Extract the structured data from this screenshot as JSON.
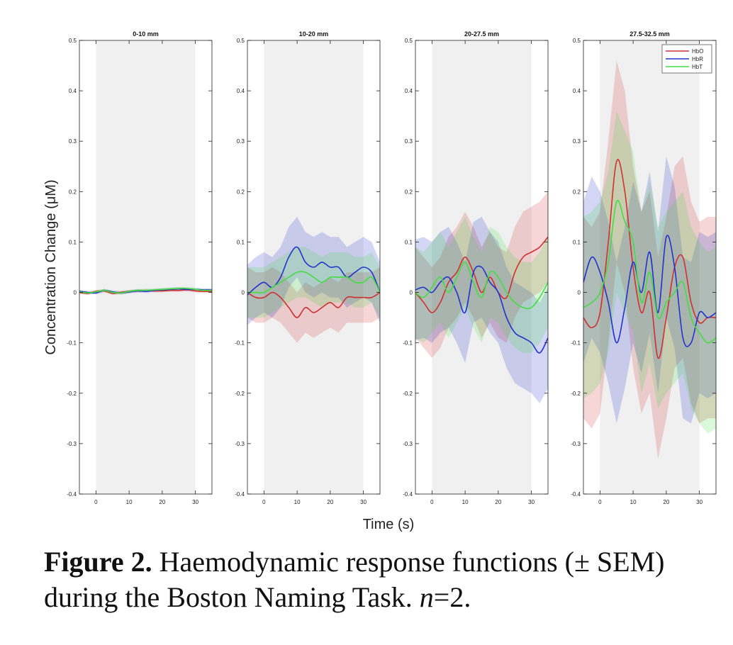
{
  "caption": {
    "label": "Figure 2.",
    "text_before_n": " Haemodynamic response functions (± SEM) during the Boston Naming Task. ",
    "n_symbol": "n",
    "text_after_n": "=2."
  },
  "colors": {
    "HbO": "#d03030",
    "HbR": "#2233cc",
    "HbT": "#44dd44",
    "task_block": "#f0f0f0"
  },
  "chart_data": {
    "type": "line",
    "ylabel": "Concentration Change (μM)",
    "xlabel": "Time (s)",
    "xlim": [
      -5,
      35
    ],
    "ylim": [
      -0.4,
      0.5
    ],
    "x_ticks": [
      0,
      10,
      20,
      30
    ],
    "y_ticks": [
      -0.4,
      -0.3,
      -0.2,
      -0.1,
      0,
      0.1,
      0.2,
      0.3,
      0.4,
      0.5
    ],
    "y_tick_labels": [
      "-0.4",
      "-0.3",
      "-0.2",
      "-0.1",
      "0",
      "0.1",
      "0.2",
      "0.3",
      "0.4",
      "0.5"
    ],
    "task_block": [
      0,
      30
    ],
    "legend": {
      "position": "top-right",
      "entries": [
        "HbO",
        "HbR",
        "HbT"
      ]
    },
    "x": [
      -5,
      -2.5,
      0,
      2.5,
      5,
      7.5,
      10,
      12.5,
      15,
      17.5,
      20,
      22.5,
      25,
      27.5,
      30,
      32.5,
      35
    ],
    "panels": [
      {
        "title": "0-10 mm",
        "series": [
          {
            "name": "HbO",
            "values": [
              0.0,
              -0.002,
              0.002,
              0.003,
              -0.002,
              0.0,
              0.002,
              0.003,
              0.004,
              0.003,
              0.003,
              0.004,
              0.004,
              0.005,
              0.003,
              0.002,
              0.002
            ],
            "sem": [
              0.003,
              0.003,
              0.003,
              0.003,
              0.003,
              0.003,
              0.003,
              0.003,
              0.003,
              0.003,
              0.003,
              0.003,
              0.003,
              0.003,
              0.003,
              0.003,
              0.003
            ]
          },
          {
            "name": "HbR",
            "values": [
              0.002,
              0.0,
              -0.001,
              0.004,
              0.001,
              -0.001,
              0.001,
              0.003,
              0.002,
              0.004,
              0.005,
              0.006,
              0.007,
              0.006,
              0.006,
              0.005,
              0.005
            ],
            "sem": [
              0.003,
              0.003,
              0.003,
              0.003,
              0.003,
              0.003,
              0.003,
              0.003,
              0.003,
              0.003,
              0.003,
              0.003,
              0.003,
              0.003,
              0.003,
              0.003,
              0.003
            ]
          },
          {
            "name": "HbT",
            "values": [
              0.001,
              -0.001,
              0.001,
              0.004,
              0.0,
              -0.001,
              0.002,
              0.004,
              0.004,
              0.005,
              0.006,
              0.007,
              0.008,
              0.008,
              0.006,
              0.004,
              0.004
            ],
            "sem": [
              0.003,
              0.003,
              0.003,
              0.003,
              0.003,
              0.003,
              0.003,
              0.003,
              0.003,
              0.003,
              0.003,
              0.003,
              0.003,
              0.003,
              0.003,
              0.003,
              0.003
            ]
          }
        ]
      },
      {
        "title": "10-20 mm",
        "series": [
          {
            "name": "HbO",
            "values": [
              0.0,
              -0.01,
              -0.01,
              0.0,
              -0.01,
              -0.03,
              -0.05,
              -0.03,
              -0.04,
              -0.03,
              -0.02,
              -0.03,
              -0.01,
              -0.01,
              -0.01,
              -0.01,
              0.0
            ],
            "sem": [
              0.05,
              0.05,
              0.05,
              0.05,
              0.05,
              0.05,
              0.05,
              0.05,
              0.05,
              0.05,
              0.05,
              0.05,
              0.05,
              0.05,
              0.05,
              0.05,
              0.05
            ]
          },
          {
            "name": "HbR",
            "values": [
              -0.005,
              0.01,
              0.02,
              0.01,
              0.03,
              0.07,
              0.09,
              0.06,
              0.05,
              0.06,
              0.05,
              0.05,
              0.03,
              0.04,
              0.05,
              0.04,
              0.0
            ],
            "sem": [
              0.06,
              0.06,
              0.06,
              0.06,
              0.06,
              0.06,
              0.06,
              0.06,
              0.06,
              0.06,
              0.06,
              0.06,
              0.06,
              0.06,
              0.06,
              0.06,
              0.06
            ]
          },
          {
            "name": "HbT",
            "values": [
              0.0,
              0.0,
              0.0,
              0.01,
              0.02,
              0.03,
              0.04,
              0.04,
              0.03,
              0.02,
              0.03,
              0.03,
              0.03,
              0.02,
              0.02,
              0.03,
              0.0
            ],
            "sem": [
              0.05,
              0.05,
              0.05,
              0.05,
              0.05,
              0.05,
              0.05,
              0.05,
              0.05,
              0.05,
              0.05,
              0.05,
              0.05,
              0.05,
              0.05,
              0.05,
              0.05
            ]
          }
        ]
      },
      {
        "title": "20-27.5 mm",
        "series": [
          {
            "name": "HbO",
            "values": [
              0.0,
              -0.02,
              -0.04,
              -0.02,
              0.02,
              0.04,
              0.07,
              0.04,
              0.0,
              0.03,
              0.0,
              -0.01,
              0.04,
              0.07,
              0.08,
              0.09,
              0.11
            ],
            "sem": [
              0.09,
              0.09,
              0.09,
              0.09,
              0.09,
              0.09,
              0.09,
              0.09,
              0.09,
              0.09,
              0.09,
              0.09,
              0.09,
              0.09,
              0.09,
              0.09,
              0.09
            ]
          },
          {
            "name": "HbR",
            "values": [
              0.005,
              0.01,
              0.0,
              0.02,
              0.03,
              0.0,
              -0.04,
              0.04,
              0.05,
              0.02,
              0.0,
              -0.05,
              -0.08,
              -0.09,
              -0.1,
              -0.12,
              -0.09
            ],
            "sem": [
              0.1,
              0.1,
              0.1,
              0.1,
              0.1,
              0.1,
              0.1,
              0.1,
              0.1,
              0.1,
              0.1,
              0.1,
              0.1,
              0.1,
              0.1,
              0.1,
              0.1
            ]
          },
          {
            "name": "HbT",
            "values": [
              0.0,
              -0.01,
              0.01,
              0.03,
              0.0,
              0.03,
              0.06,
              0.02,
              -0.01,
              0.04,
              0.03,
              0.0,
              -0.02,
              -0.03,
              -0.03,
              -0.01,
              0.02
            ],
            "sem": [
              0.09,
              0.09,
              0.09,
              0.09,
              0.09,
              0.09,
              0.09,
              0.09,
              0.09,
              0.09,
              0.09,
              0.09,
              0.09,
              0.09,
              0.09,
              0.09,
              0.09
            ]
          }
        ]
      },
      {
        "title": "27.5-32.5 mm",
        "series": [
          {
            "name": "HbO",
            "values": [
              -0.05,
              -0.07,
              -0.04,
              0.1,
              0.26,
              0.2,
              0.05,
              -0.04,
              0.0,
              -0.13,
              -0.05,
              0.05,
              0.07,
              -0.02,
              -0.06,
              -0.05,
              -0.05
            ],
            "sem": [
              0.2,
              0.2,
              0.2,
              0.2,
              0.2,
              0.2,
              0.2,
              0.2,
              0.2,
              0.2,
              0.2,
              0.2,
              0.2,
              0.2,
              0.2,
              0.2,
              0.2
            ]
          },
          {
            "name": "HbR",
            "values": [
              0.02,
              0.07,
              0.04,
              -0.02,
              -0.1,
              -0.03,
              0.06,
              0.0,
              0.08,
              -0.04,
              0.11,
              0.05,
              -0.09,
              -0.1,
              -0.04,
              -0.05,
              -0.04
            ],
            "sem": [
              0.16,
              0.16,
              0.16,
              0.16,
              0.16,
              0.16,
              0.16,
              0.16,
              0.16,
              0.16,
              0.16,
              0.16,
              0.16,
              0.16,
              0.16,
              0.16,
              0.16
            ]
          },
          {
            "name": "HbT",
            "values": [
              -0.03,
              -0.02,
              0.0,
              0.06,
              0.18,
              0.14,
              0.1,
              -0.02,
              0.04,
              -0.05,
              -0.02,
              0.0,
              0.02,
              -0.05,
              -0.08,
              -0.1,
              -0.09
            ],
            "sem": [
              0.18,
              0.18,
              0.18,
              0.18,
              0.18,
              0.18,
              0.18,
              0.18,
              0.18,
              0.18,
              0.18,
              0.18,
              0.18,
              0.18,
              0.18,
              0.18,
              0.18
            ]
          }
        ]
      }
    ]
  }
}
